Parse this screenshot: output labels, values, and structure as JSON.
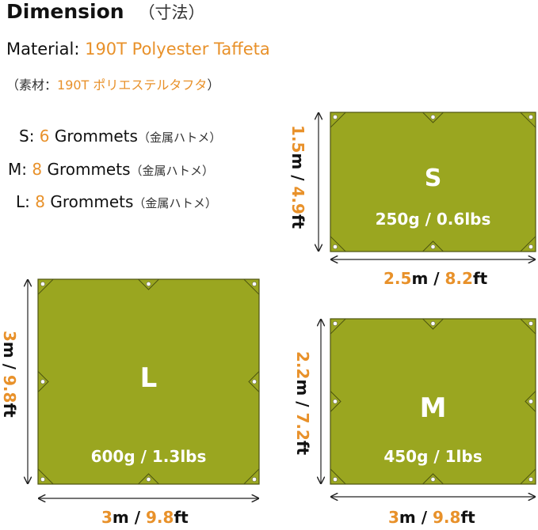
{
  "title": "Dimension",
  "title_jp": "（寸法）",
  "material": {
    "label": "Material:",
    "value": "190T Polyester Taffeta",
    "jp_prefix": "（素材：",
    "jp_value": "190T ポリエステルタフタ",
    "jp_suffix": "）"
  },
  "grommets": [
    {
      "size": "S:",
      "count": "6",
      "label": "Grommets",
      "jp": "（金属ハトメ）"
    },
    {
      "size": "M:",
      "count": "8",
      "label": "Grommets",
      "jp": "（金属ハトメ）"
    },
    {
      "size": "L:",
      "count": "8",
      "label": "Grommets",
      "jp": "（金属ハトメ）"
    }
  ],
  "tarps": {
    "s": {
      "name": "S",
      "weight": "250g / 0.6lbs",
      "w_m": "2.5",
      "w_ft": "8.2",
      "h_m": "1.5",
      "h_ft": "4.9"
    },
    "l": {
      "name": "L",
      "weight": "600g / 1.3lbs",
      "w_m": "3",
      "w_ft": "9.8",
      "h_m": "3",
      "h_ft": "9.8"
    },
    "m": {
      "name": "M",
      "weight": "450g / 1lbs",
      "w_m": "3",
      "w_ft": "9.8",
      "h_m": "2.2",
      "h_ft": "7.2"
    }
  },
  "units": {
    "m": "m",
    "ft": "ft",
    "sep": " / "
  },
  "colors": {
    "tarp": "#9aa620",
    "accent": "#e8912a"
  }
}
